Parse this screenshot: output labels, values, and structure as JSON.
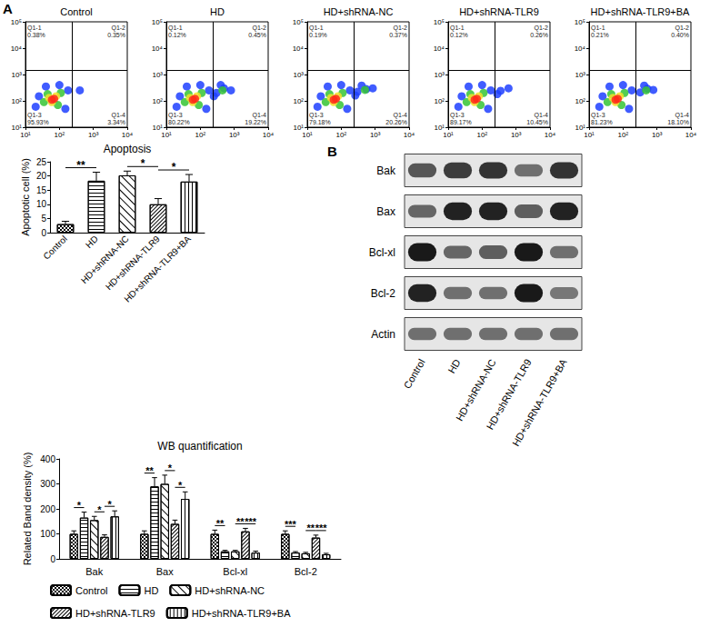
{
  "chart_data": [
    {
      "type": "scatter",
      "title": "Control",
      "panel_label": "A",
      "log": true,
      "grid": false,
      "xlim": [
        10,
        10000
      ],
      "xticks": [
        {
          "value": 10,
          "label": "10¹"
        },
        {
          "value": 100,
          "label": "10²"
        },
        {
          "value": 1000,
          "label": "10³"
        },
        {
          "value": 10000,
          "label": "10⁴"
        }
      ],
      "ylim": [
        10,
        100000
      ],
      "yticks": [
        {
          "value": 10,
          "label": "10¹"
        },
        {
          "value": 100,
          "label": "10²"
        },
        {
          "value": 1000,
          "label": "10³"
        },
        {
          "value": 10000,
          "label": "10⁴"
        },
        {
          "value": 100000,
          "label": "10⁵"
        }
      ],
      "x": [
        20,
        25,
        150,
        180,
        40,
        100,
        400,
        35,
        110,
        45,
        90,
        50,
        80,
        60,
        60,
        70
      ],
      "values": [
        60,
        150,
        50,
        250,
        350,
        400,
        250,
        90,
        200,
        180,
        70,
        130,
        150,
        90,
        110,
        120
      ],
      "colors": [
        "#1f3fff",
        "#1f3fff",
        "#1f3fff",
        "#1f3fff",
        "#1f3fff",
        "#1f3fff",
        "#1f3fff",
        "#35c435",
        "#35c435",
        "#35c435",
        "#35c435",
        "#f2e12a",
        "#f2e12a",
        "#f2e12a",
        "#ff2a1a",
        "#ff2a1a"
      ],
      "gates": {
        "x": 230,
        "y": 1500
      },
      "quadrants": [
        {
          "name": "Q1-1",
          "value": 0.38,
          "label": "0.38%"
        },
        {
          "name": "Q1-2",
          "value": 0.35,
          "label": "0.35%"
        },
        {
          "name": "Q1-3",
          "value": 95.93,
          "label": "95.93%"
        },
        {
          "name": "Q1-4",
          "value": 3.34,
          "label": "3.34%"
        }
      ]
    },
    {
      "type": "scatter",
      "title": "HD",
      "log": true,
      "grid": false,
      "xlim": [
        10,
        10000
      ],
      "xticks": [
        {
          "value": 10,
          "label": "10¹"
        },
        {
          "value": 100,
          "label": "10²"
        },
        {
          "value": 1000,
          "label": "10³"
        },
        {
          "value": 10000,
          "label": "10⁴"
        }
      ],
      "ylim": [
        10,
        100000
      ],
      "yticks": [
        {
          "value": 10,
          "label": "10¹"
        },
        {
          "value": 100,
          "label": "10²"
        },
        {
          "value": 1000,
          "label": "10³"
        },
        {
          "value": 10000,
          "label": "10⁴"
        },
        {
          "value": 100000,
          "label": "10⁵"
        }
      ],
      "x": [
        20,
        25,
        150,
        180,
        40,
        100,
        300,
        500,
        800,
        400,
        250,
        35,
        110,
        45,
        90,
        450,
        50,
        80,
        60,
        60,
        70
      ],
      "values": [
        60,
        150,
        50,
        250,
        350,
        400,
        200,
        300,
        250,
        400,
        150,
        90,
        200,
        180,
        70,
        250,
        130,
        150,
        90,
        110,
        120
      ],
      "colors": [
        "#1f3fff",
        "#1f3fff",
        "#1f3fff",
        "#1f3fff",
        "#1f3fff",
        "#1f3fff",
        "#1f3fff",
        "#1f3fff",
        "#1f3fff",
        "#1f3fff",
        "#1f3fff",
        "#35c435",
        "#35c435",
        "#35c435",
        "#35c435",
        "#35c435",
        "#f2e12a",
        "#f2e12a",
        "#f2e12a",
        "#ff2a1a",
        "#ff2a1a"
      ],
      "gates": {
        "x": 230,
        "y": 1500
      },
      "quadrants": [
        {
          "name": "Q1-1",
          "value": 0.12,
          "label": "0.12%"
        },
        {
          "name": "Q1-2",
          "value": 0.45,
          "label": "0.45%"
        },
        {
          "name": "Q1-3",
          "value": 80.22,
          "label": "80.22%"
        },
        {
          "name": "Q1-4",
          "value": 19.22,
          "label": "19.22%"
        }
      ]
    },
    {
      "type": "scatter",
      "title": "HD+shRNA-NC",
      "log": true,
      "grid": false,
      "xlim": [
        10,
        10000
      ],
      "xticks": [
        {
          "value": 10,
          "label": "10¹"
        },
        {
          "value": 100,
          "label": "10²"
        },
        {
          "value": 1000,
          "label": "10³"
        },
        {
          "value": 10000,
          "label": "10⁴"
        }
      ],
      "ylim": [
        10,
        100000
      ],
      "yticks": [
        {
          "value": 10,
          "label": "10¹"
        },
        {
          "value": 100,
          "label": "10²"
        },
        {
          "value": 1000,
          "label": "10³"
        },
        {
          "value": 10000,
          "label": "10⁴"
        },
        {
          "value": 100000,
          "label": "10⁵"
        }
      ],
      "x": [
        20,
        25,
        150,
        180,
        40,
        100,
        300,
        550,
        850,
        400,
        260,
        35,
        110,
        45,
        90,
        500,
        50,
        80,
        60,
        60,
        70
      ],
      "values": [
        60,
        150,
        50,
        250,
        350,
        400,
        220,
        280,
        300,
        380,
        160,
        90,
        200,
        180,
        70,
        260,
        130,
        150,
        90,
        110,
        120
      ],
      "colors": [
        "#1f3fff",
        "#1f3fff",
        "#1f3fff",
        "#1f3fff",
        "#1f3fff",
        "#1f3fff",
        "#1f3fff",
        "#1f3fff",
        "#1f3fff",
        "#1f3fff",
        "#1f3fff",
        "#35c435",
        "#35c435",
        "#35c435",
        "#35c435",
        "#35c435",
        "#f2e12a",
        "#f2e12a",
        "#f2e12a",
        "#ff2a1a",
        "#ff2a1a"
      ],
      "gates": {
        "x": 230,
        "y": 1500
      },
      "quadrants": [
        {
          "name": "Q1-1",
          "value": 0.19,
          "label": "0.19%"
        },
        {
          "name": "Q1-2",
          "value": 0.37,
          "label": "0.37%"
        },
        {
          "name": "Q1-3",
          "value": 79.18,
          "label": "79.18%"
        },
        {
          "name": "Q1-4",
          "value": 20.26,
          "label": "20.26%"
        }
      ]
    },
    {
      "type": "scatter",
      "title": "HD+shRNA-TLR9",
      "log": true,
      "grid": false,
      "xlim": [
        10,
        10000
      ],
      "xticks": [
        {
          "value": 10,
          "label": "10¹"
        },
        {
          "value": 100,
          "label": "10²"
        },
        {
          "value": 1000,
          "label": "10³"
        },
        {
          "value": 10000,
          "label": "10⁴"
        }
      ],
      "ylim": [
        10,
        100000
      ],
      "yticks": [
        {
          "value": 10,
          "label": "10¹"
        },
        {
          "value": 100,
          "label": "10²"
        },
        {
          "value": 1000,
          "label": "10³"
        },
        {
          "value": 10000,
          "label": "10⁴"
        },
        {
          "value": 100000,
          "label": "10⁵"
        }
      ],
      "x": [
        20,
        25,
        150,
        180,
        40,
        100,
        350,
        600,
        280,
        35,
        110,
        45,
        90,
        50,
        80,
        60,
        60,
        70
      ],
      "values": [
        60,
        150,
        50,
        250,
        350,
        400,
        240,
        300,
        180,
        90,
        200,
        180,
        70,
        130,
        150,
        90,
        110,
        120
      ],
      "colors": [
        "#1f3fff",
        "#1f3fff",
        "#1f3fff",
        "#1f3fff",
        "#1f3fff",
        "#1f3fff",
        "#1f3fff",
        "#1f3fff",
        "#1f3fff",
        "#35c435",
        "#35c435",
        "#35c435",
        "#35c435",
        "#f2e12a",
        "#f2e12a",
        "#f2e12a",
        "#ff2a1a",
        "#ff2a1a"
      ],
      "gates": {
        "x": 230,
        "y": 1500
      },
      "quadrants": [
        {
          "name": "Q1-1",
          "value": 0.12,
          "label": "0.12%"
        },
        {
          "name": "Q1-2",
          "value": 0.26,
          "label": "0.26%"
        },
        {
          "name": "Q1-3",
          "value": 89.17,
          "label": "89.17%"
        },
        {
          "name": "Q1-4",
          "value": 10.45,
          "label": "10.45%"
        }
      ]
    },
    {
      "type": "scatter",
      "title": "HD+shRNA-TLR9+BA",
      "log": true,
      "grid": false,
      "xlim": [
        10,
        10000
      ],
      "xticks": [
        {
          "value": 10,
          "label": "10¹"
        },
        {
          "value": 100,
          "label": "10²"
        },
        {
          "value": 1000,
          "label": "10³"
        },
        {
          "value": 10000,
          "label": "10⁴"
        }
      ],
      "ylim": [
        10,
        100000
      ],
      "yticks": [
        {
          "value": 10,
          "label": "10¹"
        },
        {
          "value": 100,
          "label": "10²"
        },
        {
          "value": 1000,
          "label": "10³"
        },
        {
          "value": 10000,
          "label": "10⁴"
        },
        {
          "value": 100000,
          "label": "10⁵"
        }
      ],
      "x": [
        20,
        25,
        150,
        180,
        40,
        100,
        320,
        520,
        780,
        420,
        35,
        110,
        45,
        90,
        480,
        50,
        80,
        60,
        60,
        70
      ],
      "values": [
        60,
        150,
        50,
        250,
        350,
        400,
        210,
        290,
        260,
        380,
        90,
        200,
        180,
        70,
        250,
        130,
        150,
        90,
        110,
        120
      ],
      "colors": [
        "#1f3fff",
        "#1f3fff",
        "#1f3fff",
        "#1f3fff",
        "#1f3fff",
        "#1f3fff",
        "#1f3fff",
        "#1f3fff",
        "#1f3fff",
        "#1f3fff",
        "#35c435",
        "#35c435",
        "#35c435",
        "#35c435",
        "#35c435",
        "#f2e12a",
        "#f2e12a",
        "#f2e12a",
        "#ff2a1a",
        "#ff2a1a"
      ],
      "gates": {
        "x": 230,
        "y": 1500
      },
      "quadrants": [
        {
          "name": "Q1-1",
          "value": 0.21,
          "label": "0.21%"
        },
        {
          "name": "Q1-2",
          "value": 0.4,
          "label": "0.40%"
        },
        {
          "name": "Q1-3",
          "value": 81.23,
          "label": "81.23%"
        },
        {
          "name": "Q1-4",
          "value": 18.1,
          "label": "18.10%"
        }
      ]
    },
    {
      "type": "bar",
      "title": "Apoptosis",
      "y_label": "Apoptotic cell (%)",
      "grid": false,
      "categories": [
        "Control",
        "HD",
        "HD+shRNA-NC",
        "HD+shRNA-TLR9",
        "HD+shRNA-TLR9+BA"
      ],
      "values": [
        3,
        18.3,
        20.2,
        10,
        18
      ],
      "errors": [
        1,
        3,
        1.5,
        2,
        2.5
      ],
      "color": "#000000",
      "ylim": [
        0,
        25
      ],
      "yticks": [
        0,
        5,
        10,
        15,
        20,
        25
      ],
      "annotations": [
        {
          "from": "Control",
          "to": "HD",
          "text": "**"
        },
        {
          "from": "HD+shRNA-NC",
          "to": "HD+shRNA-TLR9",
          "text": "*"
        },
        {
          "from": "HD+shRNA-TLR9",
          "to": "HD+shRNA-TLR9+BA",
          "text": "*"
        }
      ]
    },
    {
      "type": "blot",
      "panel_label": "B",
      "rows": [
        "Bak",
        "Bax",
        "Bcl-xl",
        "Bcl-2",
        "Actin"
      ],
      "lanes": [
        "Control",
        "HD",
        "HD+shRNA-NC",
        "HD+shRNA-TLR9",
        "HD+shRNA-TLR9+BA"
      ],
      "band_intensity": [
        [
          60,
          75,
          80,
          45,
          80
        ],
        [
          50,
          90,
          90,
          55,
          90
        ],
        [
          95,
          50,
          55,
          95,
          45
        ],
        [
          90,
          45,
          45,
          95,
          40
        ],
        [
          45,
          45,
          45,
          45,
          45
        ]
      ]
    },
    {
      "type": "bar",
      "title": "WB quantification",
      "y_label": "Related Band density (%)",
      "grid": false,
      "legend": "bottom",
      "categories": [
        "Bak",
        "Bax",
        "Bcl-xl",
        "Bcl-2"
      ],
      "series": [
        {
          "name": "Control",
          "color": "#000000",
          "values": [
            100,
            100,
            100,
            100
          ],
          "errors": [
            12,
            12,
            15,
            12
          ]
        },
        {
          "name": "HD",
          "color": "#000000",
          "values": [
            165,
            290,
            30,
            25
          ],
          "errors": [
            22,
            35,
            4,
            4
          ]
        },
        {
          "name": "HD+shRNA-NC",
          "color": "#000000",
          "values": [
            155,
            300,
            30,
            22
          ],
          "errors": [
            15,
            35,
            4,
            4
          ]
        },
        {
          "name": "HD+shRNA-TLR9",
          "color": "#000000",
          "values": [
            88,
            140,
            110,
            85
          ],
          "errors": [
            8,
            15,
            12,
            10
          ]
        },
        {
          "name": "HD+shRNA-TLR9+BA",
          "color": "#000000",
          "values": [
            170,
            240,
            25,
            18
          ],
          "errors": [
            22,
            28,
            6,
            4
          ]
        }
      ],
      "ylim": [
        0,
        400
      ],
      "yticks": [
        0,
        100,
        200,
        300,
        400
      ],
      "annotations": [
        {
          "category": "Bak",
          "from": "Control",
          "to": "HD",
          "text": "*"
        },
        {
          "category": "Bak",
          "from": "HD+shRNA-NC",
          "to": "HD+shRNA-TLR9",
          "text": "*"
        },
        {
          "category": "Bak",
          "from": "HD+shRNA-TLR9",
          "to": "HD+shRNA-TLR9+BA",
          "text": "*"
        },
        {
          "category": "Bax",
          "from": "Control",
          "to": "HD",
          "text": "**"
        },
        {
          "category": "Bax",
          "from": "HD+shRNA-NC",
          "to": "HD+shRNA-TLR9",
          "text": "*"
        },
        {
          "category": "Bax",
          "from": "HD+shRNA-TLR9",
          "to": "HD+shRNA-TLR9+BA",
          "text": "*"
        },
        {
          "category": "Bcl-xl",
          "from": "Control",
          "to": "HD",
          "text": "**"
        },
        {
          "category": "Bcl-xl",
          "from": "HD+shRNA-NC",
          "to": "HD+shRNA-TLR9",
          "text": "**"
        },
        {
          "category": "Bcl-xl",
          "from": "HD+shRNA-TLR9",
          "to": "HD+shRNA-TLR9+BA",
          "text": "***"
        },
        {
          "category": "Bcl-2",
          "from": "Control",
          "to": "HD",
          "text": "***"
        },
        {
          "category": "Bcl-2",
          "from": "HD+shRNA-NC",
          "to": "HD+shRNA-TLR9",
          "text": "**"
        },
        {
          "category": "Bcl-2",
          "from": "HD+shRNA-TLR9",
          "to": "HD+shRNA-TLR9+BA",
          "text": "***"
        }
      ]
    }
  ]
}
